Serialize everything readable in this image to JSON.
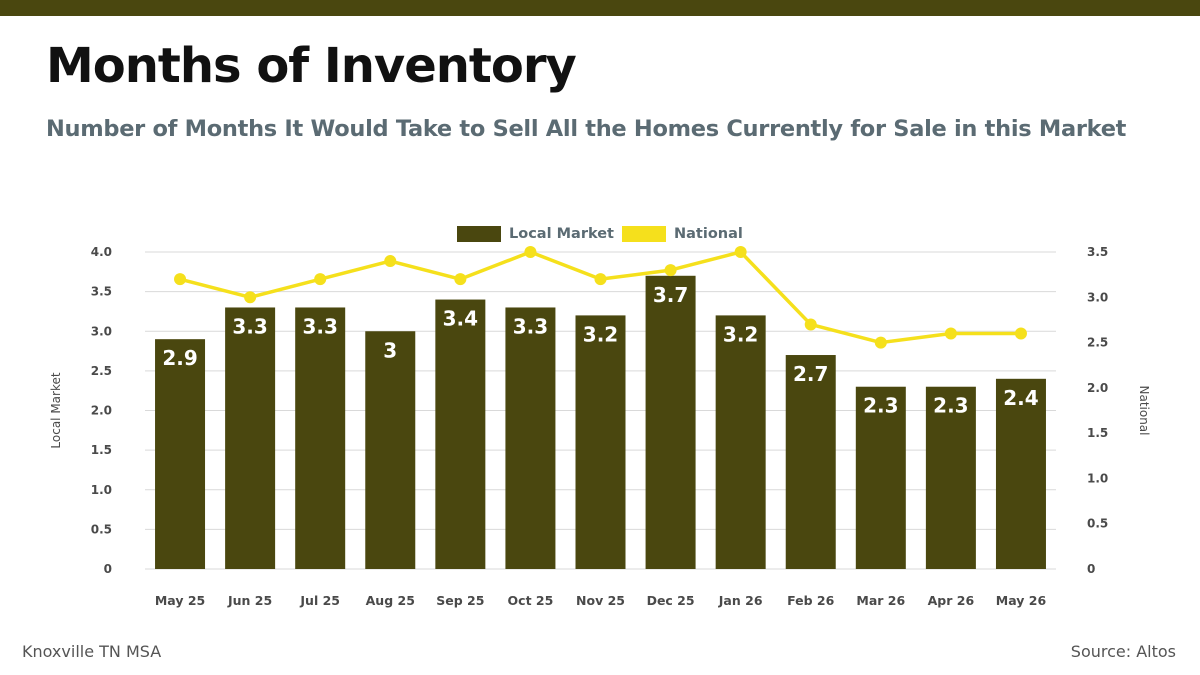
{
  "header": {
    "title": "Months of Inventory",
    "subtitle": "Number of Months It Would Take to Sell All the Homes Currently for Sale in this Market"
  },
  "footer": {
    "left": "Knoxville TN MSA",
    "right": "Source: Altos"
  },
  "colors": {
    "band": "#4a470f",
    "bar": "#4a470f",
    "line": "#f5e01c",
    "axis_text": "#4a4a4a",
    "grid": "#d9d9d9"
  },
  "chart_data": {
    "type": "bar",
    "title": "Months of Inventory",
    "categories": [
      "May 25",
      "Jun 25",
      "Jul 25",
      "Aug 25",
      "Sep 25",
      "Oct 25",
      "Nov 25",
      "Dec 25",
      "Jan 26",
      "Feb 26",
      "Mar 26",
      "Apr 26",
      "May 26"
    ],
    "series": [
      {
        "name": "Local Market",
        "type": "bar",
        "axis": "left",
        "values": [
          2.9,
          3.3,
          3.3,
          3.0,
          3.4,
          3.3,
          3.2,
          3.7,
          3.2,
          2.7,
          2.3,
          2.3,
          2.4
        ],
        "labels": [
          "2.9",
          "3.3",
          "3.3",
          "3",
          "3.4",
          "3.3",
          "3.2",
          "3.7",
          "3.2",
          "2.7",
          "2.3",
          "2.3",
          "2.4"
        ]
      },
      {
        "name": "National",
        "type": "line",
        "axis": "right",
        "values": [
          3.2,
          3.0,
          3.2,
          3.4,
          3.2,
          3.5,
          3.2,
          3.3,
          3.5,
          2.7,
          2.5,
          2.6,
          2.6
        ]
      }
    ],
    "ylabel_left": "Local Market",
    "ylabel_right": "National",
    "ylim_left": [
      0,
      4.0
    ],
    "ylim_right": [
      0,
      3.5
    ],
    "yticks_left": [
      "0",
      "0.5",
      "1.0",
      "1.5",
      "2.0",
      "2.5",
      "3.0",
      "3.5",
      "4.0"
    ],
    "yticks_right": [
      "0",
      "0.5",
      "1.0",
      "1.5",
      "2.0",
      "2.5",
      "3.0",
      "3.5"
    ],
    "grid": true,
    "legend_position": "top-center"
  }
}
